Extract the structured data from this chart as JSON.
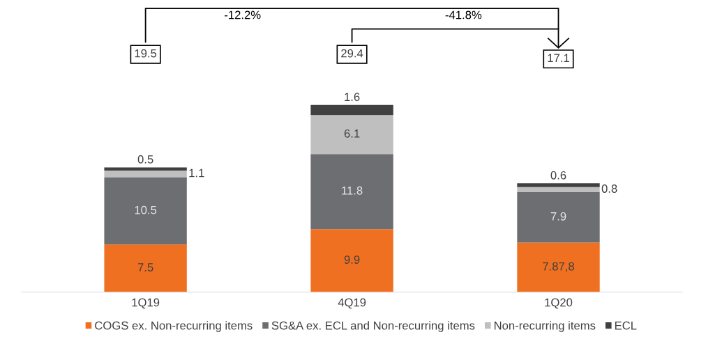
{
  "chart_data": {
    "type": "bar",
    "stacked": true,
    "categories": [
      "1Q19",
      "4Q19",
      "1Q20"
    ],
    "series": [
      {
        "name": "COGS ex. Non-recurring items",
        "color": "#f07021",
        "values": [
          7.5,
          9.9,
          7.8
        ],
        "value_labels": [
          "7.5",
          "9.9",
          "7.87,8"
        ]
      },
      {
        "name": "SG&A ex. ECL and Non-recurring items",
        "color": "#6d6e71",
        "values": [
          10.5,
          11.8,
          7.9
        ],
        "value_labels": [
          "10.5",
          "11.8",
          "7.9"
        ]
      },
      {
        "name": "Non-recurring items",
        "color": "#bfbfbf",
        "values": [
          1.1,
          6.1,
          0.8
        ],
        "value_labels": [
          "1.1",
          "6.1",
          "0.8"
        ]
      },
      {
        "name": "ECL",
        "color": "#404040",
        "values": [
          0.5,
          1.6,
          0.6
        ],
        "value_labels": [
          "0.5",
          "1.6",
          "0.6"
        ]
      }
    ],
    "annotations": [
      "19.5",
      "29.4",
      "17.1",
      "-12.2%",
      "-41.8%"
    ],
    "legend": "bottom",
    "grid": false
  }
}
